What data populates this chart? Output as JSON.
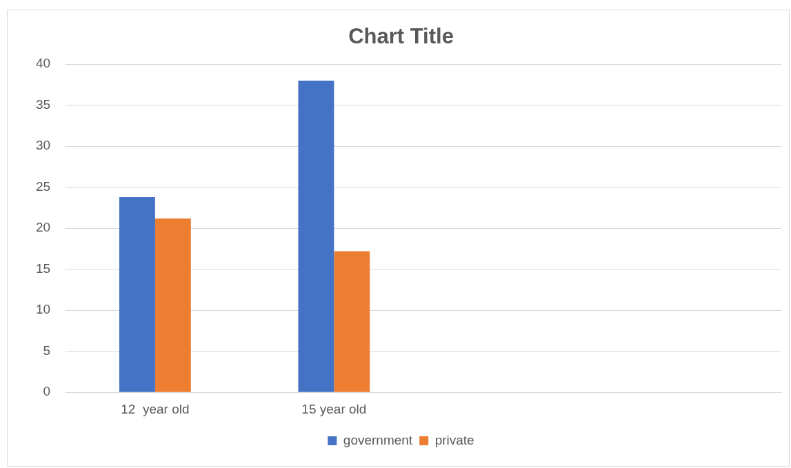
{
  "chart_data": {
    "type": "bar",
    "title": "Chart Title",
    "categories": [
      "12  year old",
      "15 year old",
      null,
      null
    ],
    "series": [
      {
        "name": "government",
        "color": "#4472c4",
        "values": [
          23.8,
          38,
          null,
          null
        ]
      },
      {
        "name": "private",
        "color": "#ed7d31",
        "values": [
          21.2,
          17.2,
          null,
          null
        ]
      }
    ],
    "ylim": [
      0,
      40
    ],
    "yticks": [
      0,
      5,
      10,
      15,
      20,
      25,
      30,
      35,
      40
    ],
    "grid": "y",
    "legend": "bottom"
  }
}
